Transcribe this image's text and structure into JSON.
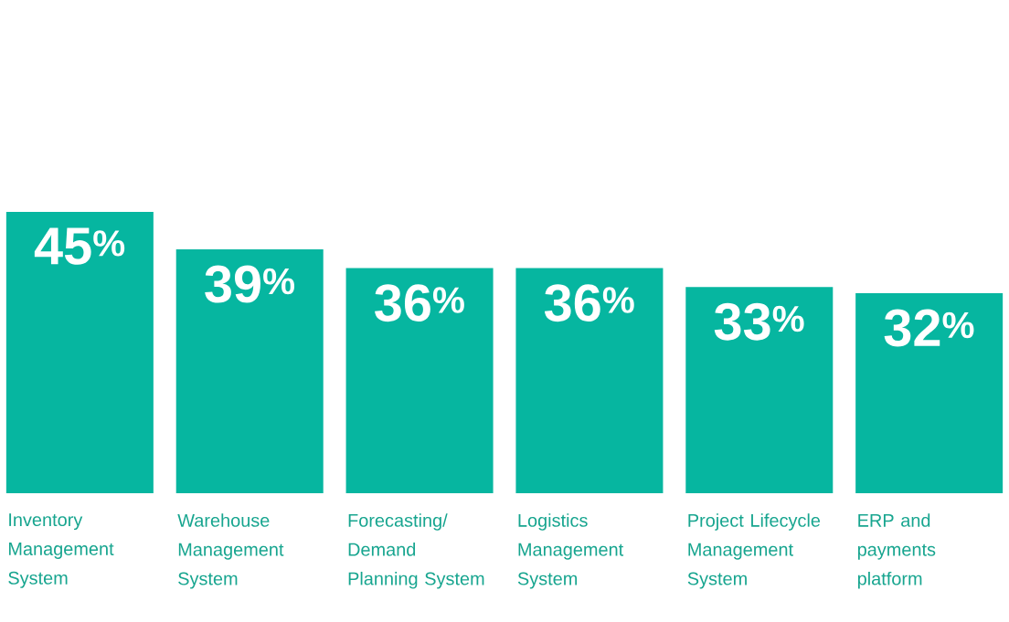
{
  "chart_data": {
    "type": "bar",
    "categories": [
      "Inventory Management System",
      "Warehouse Management System",
      "Forecasting/ Demand Planning System",
      "Logistics Management System",
      "Project Lifecycle Management System",
      "ERP and payments platform"
    ],
    "values": [
      45,
      39,
      36,
      36,
      33,
      32
    ],
    "value_labels": [
      "45$^{%}$",
      "39$^{%}$",
      "36$^{%}$",
      "36$^{%}$",
      "33$^{%}$",
      "32$^{%}$"
    ],
    "color": "#06b6a0"
  }
}
